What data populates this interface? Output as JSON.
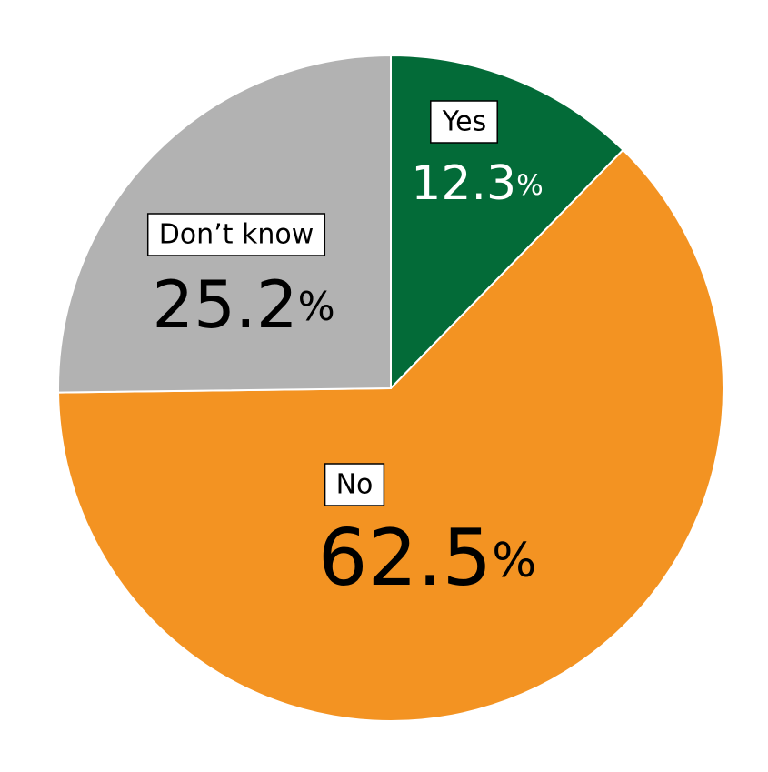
{
  "chart_data": {
    "type": "pie",
    "categories": [
      "Yes",
      "No",
      "Don’t know"
    ],
    "values": [
      12.3,
      62.5,
      25.2
    ],
    "value_labels": [
      "12.3%",
      "62.5%",
      "25.2%"
    ],
    "colors": [
      "#036b38",
      "#f39322",
      "#b2b2b2"
    ]
  }
}
